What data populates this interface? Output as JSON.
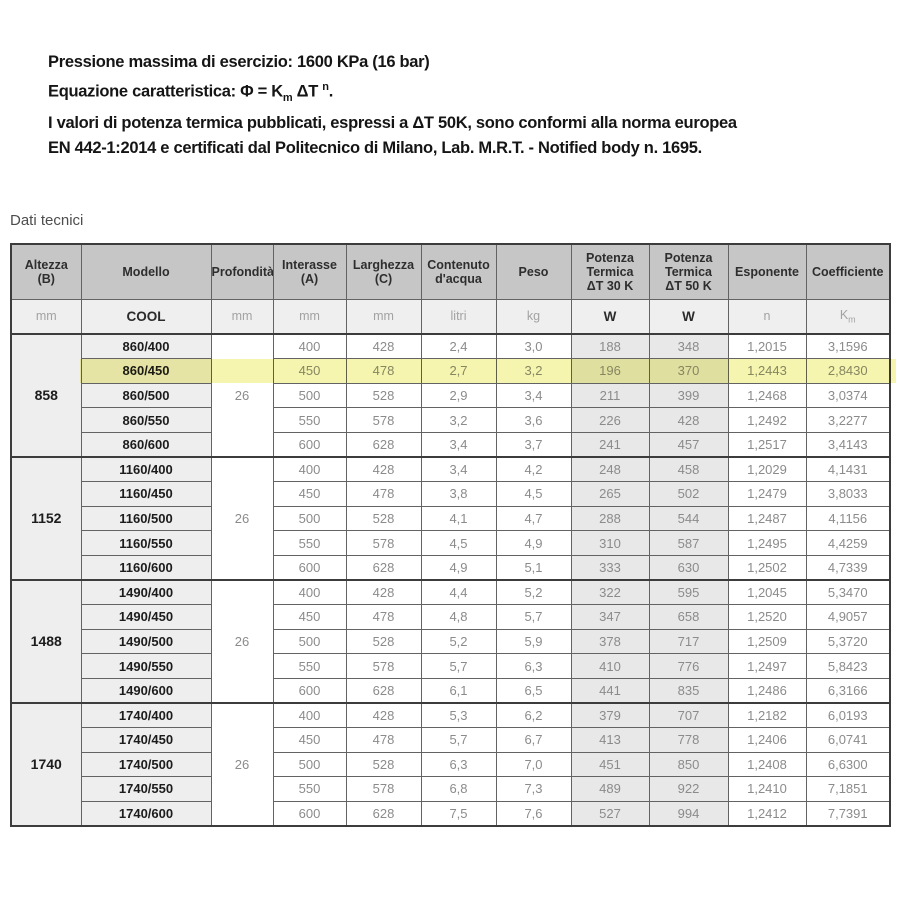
{
  "intro": {
    "line1": "Pressione massima di esercizio: 1600 KPa (16 bar)",
    "equation_prefix": "Equazione caratteristica: Φ = K",
    "equation_sub": "m",
    "equation_mid": " ΔT ",
    "equation_sup": "n",
    "equation_suffix": ".",
    "line3": "I valori di potenza termica pubblicati, espressi a ΔT 50K, sono conformi alla norma europea",
    "line4": "EN 442-1:2014 e certificati dal Politecnico di Milano, Lab. M.R.T. - Notified body n. 1695."
  },
  "section_title": "Dati tecnici",
  "colors": {
    "header_bg": "#c7c6c6",
    "units_bg": "#f0efef",
    "shaded_cell_bg": "#efeeee",
    "potenza_bg": "#e9e8e8",
    "border": "#636363",
    "highlight": "#f5f5b0"
  },
  "table": {
    "headers": [
      "Altezza\n(B)",
      "Modello",
      "Profondità",
      "Interasse\n(A)",
      "Larghezza\n(C)",
      "Contenuto\nd'acqua",
      "Peso",
      "Potenza\nTermica\nΔT 30 K",
      "Potenza\nTermica\nΔT 50 K",
      "Esponente",
      "Coefficiente"
    ],
    "units": {
      "altezza": "mm",
      "modello": "COOL",
      "profondita": "mm",
      "interasse": "mm",
      "larghezza": "mm",
      "contenuto": "litri",
      "peso": "kg",
      "p30": "W",
      "p50": "W",
      "esponente": "n",
      "coefficiente_base": "K",
      "coefficiente_sub": "m"
    },
    "highlight": {
      "model": "860/450",
      "color": "#f5f5b0"
    },
    "groups": [
      {
        "altezza": "858",
        "profondita": "26",
        "rows": [
          {
            "modello": "860/400",
            "interasse": "400",
            "larghezza": "428",
            "contenuto": "2,4",
            "peso": "3,0",
            "p30": "188",
            "p50": "348",
            "esponente": "1,2015",
            "coefficiente": "3,1596"
          },
          {
            "modello": "860/450",
            "interasse": "450",
            "larghezza": "478",
            "contenuto": "2,7",
            "peso": "3,2",
            "p30": "196",
            "p50": "370",
            "esponente": "1,2443",
            "coefficiente": "2,8430"
          },
          {
            "modello": "860/500",
            "interasse": "500",
            "larghezza": "528",
            "contenuto": "2,9",
            "peso": "3,4",
            "p30": "211",
            "p50": "399",
            "esponente": "1,2468",
            "coefficiente": "3,0374"
          },
          {
            "modello": "860/550",
            "interasse": "550",
            "larghezza": "578",
            "contenuto": "3,2",
            "peso": "3,6",
            "p30": "226",
            "p50": "428",
            "esponente": "1,2492",
            "coefficiente": "3,2277"
          },
          {
            "modello": "860/600",
            "interasse": "600",
            "larghezza": "628",
            "contenuto": "3,4",
            "peso": "3,7",
            "p30": "241",
            "p50": "457",
            "esponente": "1,2517",
            "coefficiente": "3,4143"
          }
        ]
      },
      {
        "altezza": "1152",
        "profondita": "26",
        "rows": [
          {
            "modello": "1160/400",
            "interasse": "400",
            "larghezza": "428",
            "contenuto": "3,4",
            "peso": "4,2",
            "p30": "248",
            "p50": "458",
            "esponente": "1,2029",
            "coefficiente": "4,1431"
          },
          {
            "modello": "1160/450",
            "interasse": "450",
            "larghezza": "478",
            "contenuto": "3,8",
            "peso": "4,5",
            "p30": "265",
            "p50": "502",
            "esponente": "1,2479",
            "coefficiente": "3,8033"
          },
          {
            "modello": "1160/500",
            "interasse": "500",
            "larghezza": "528",
            "contenuto": "4,1",
            "peso": "4,7",
            "p30": "288",
            "p50": "544",
            "esponente": "1,2487",
            "coefficiente": "4,1156"
          },
          {
            "modello": "1160/550",
            "interasse": "550",
            "larghezza": "578",
            "contenuto": "4,5",
            "peso": "4,9",
            "p30": "310",
            "p50": "587",
            "esponente": "1,2495",
            "coefficiente": "4,4259"
          },
          {
            "modello": "1160/600",
            "interasse": "600",
            "larghezza": "628",
            "contenuto": "4,9",
            "peso": "5,1",
            "p30": "333",
            "p50": "630",
            "esponente": "1,2502",
            "coefficiente": "4,7339"
          }
        ]
      },
      {
        "altezza": "1488",
        "profondita": "26",
        "rows": [
          {
            "modello": "1490/400",
            "interasse": "400",
            "larghezza": "428",
            "contenuto": "4,4",
            "peso": "5,2",
            "p30": "322",
            "p50": "595",
            "esponente": "1,2045",
            "coefficiente": "5,3470"
          },
          {
            "modello": "1490/450",
            "interasse": "450",
            "larghezza": "478",
            "contenuto": "4,8",
            "peso": "5,7",
            "p30": "347",
            "p50": "658",
            "esponente": "1,2520",
            "coefficiente": "4,9057"
          },
          {
            "modello": "1490/500",
            "interasse": "500",
            "larghezza": "528",
            "contenuto": "5,2",
            "peso": "5,9",
            "p30": "378",
            "p50": "717",
            "esponente": "1,2509",
            "coefficiente": "5,3720"
          },
          {
            "modello": "1490/550",
            "interasse": "550",
            "larghezza": "578",
            "contenuto": "5,7",
            "peso": "6,3",
            "p30": "410",
            "p50": "776",
            "esponente": "1,2497",
            "coefficiente": "5,8423"
          },
          {
            "modello": "1490/600",
            "interasse": "600",
            "larghezza": "628",
            "contenuto": "6,1",
            "peso": "6,5",
            "p30": "441",
            "p50": "835",
            "esponente": "1,2486",
            "coefficiente": "6,3166"
          }
        ]
      },
      {
        "altezza": "1740",
        "profondita": "26",
        "rows": [
          {
            "modello": "1740/400",
            "interasse": "400",
            "larghezza": "428",
            "contenuto": "5,3",
            "peso": "6,2",
            "p30": "379",
            "p50": "707",
            "esponente": "1,2182",
            "coefficiente": "6,0193"
          },
          {
            "modello": "1740/450",
            "interasse": "450",
            "larghezza": "478",
            "contenuto": "5,7",
            "peso": "6,7",
            "p30": "413",
            "p50": "778",
            "esponente": "1,2406",
            "coefficiente": "6,0741"
          },
          {
            "modello": "1740/500",
            "interasse": "500",
            "larghezza": "528",
            "contenuto": "6,3",
            "peso": "7,0",
            "p30": "451",
            "p50": "850",
            "esponente": "1,2408",
            "coefficiente": "6,6300"
          },
          {
            "modello": "1740/550",
            "interasse": "550",
            "larghezza": "578",
            "contenuto": "6,8",
            "peso": "7,3",
            "p30": "489",
            "p50": "922",
            "esponente": "1,2410",
            "coefficiente": "7,1851"
          },
          {
            "modello": "1740/600",
            "interasse": "600",
            "larghezza": "628",
            "contenuto": "7,5",
            "peso": "7,6",
            "p30": "527",
            "p50": "994",
            "esponente": "1,2412",
            "coefficiente": "7,7391"
          }
        ]
      }
    ]
  }
}
